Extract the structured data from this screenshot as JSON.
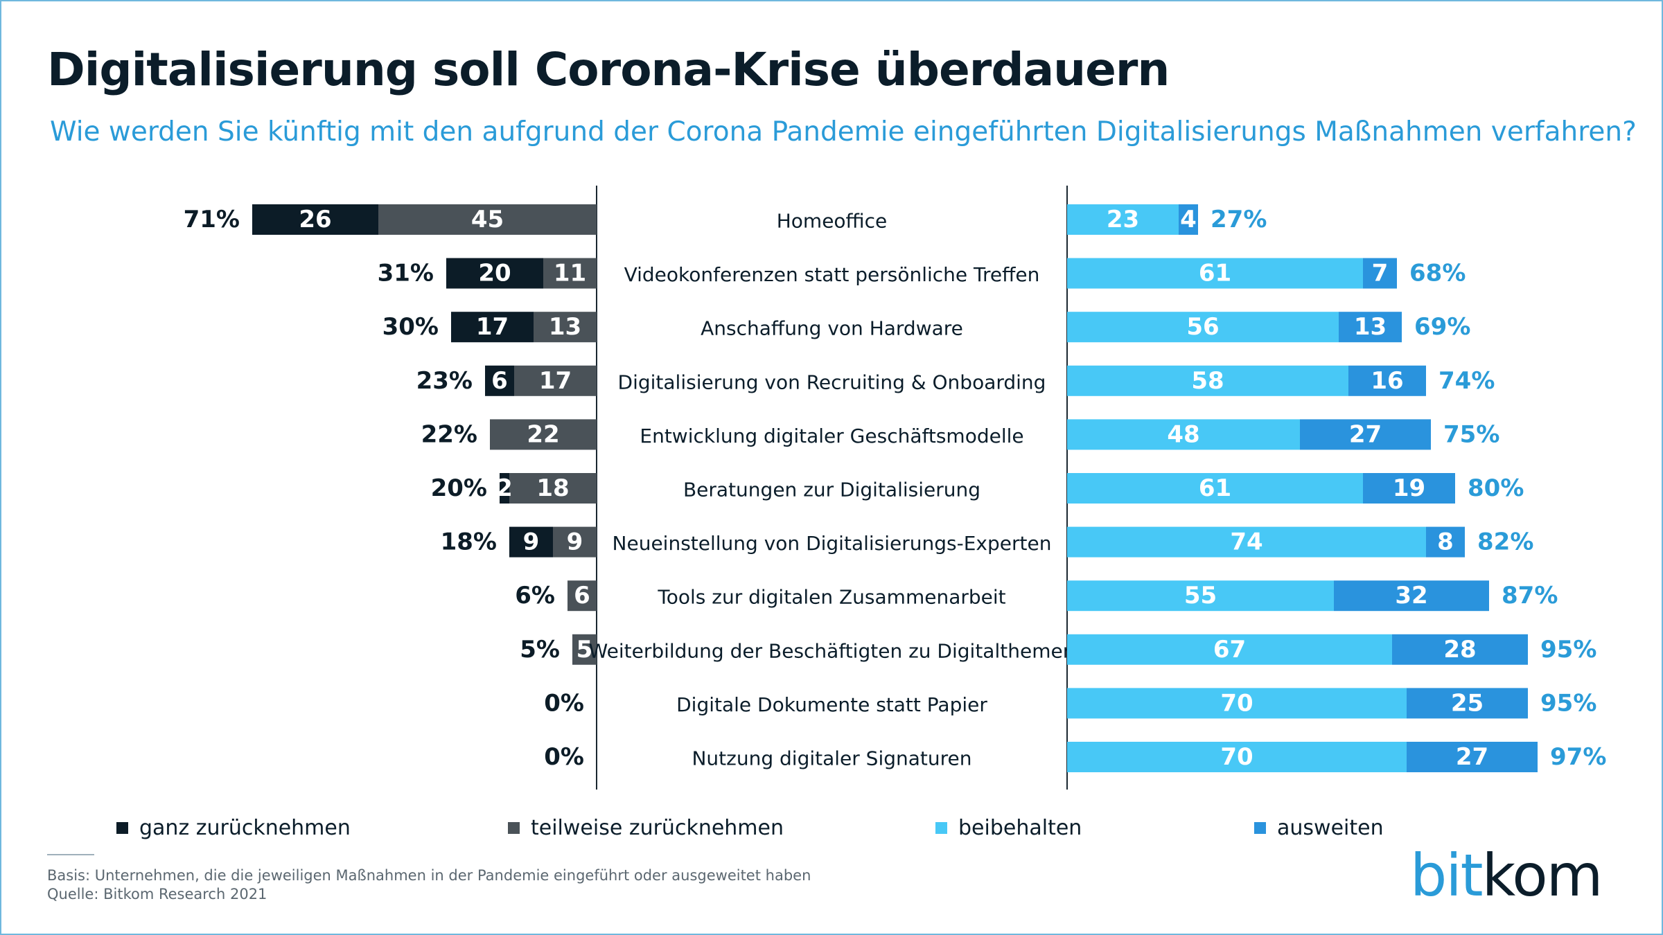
{
  "title": "Digitalisierung soll Corona-Krise überdauern",
  "subtitle": "Wie werden Sie künftig mit den aufgrund der Corona Pandemie eingeführten Digitalisierungs Maßnahmen verfahren?",
  "colors": {
    "ganz": "#0c1c27",
    "teilweise": "#4a5258",
    "beibehalten": "#48c8f6",
    "ausweiten": "#2a93dd",
    "accent_text": "#2a9bd8"
  },
  "chart_data": {
    "type": "bar",
    "layout": "diverging-stacked-horizontal",
    "categories": [
      "Homeoffice",
      "Videokonferenzen statt persönliche Treffen",
      "Anschaffung von Hardware",
      "Digitalisierung von Recruiting & Onboarding",
      "Entwicklung digitaler Geschäftsmodelle",
      "Beratungen zur Digitalisierung",
      "Neueinstellung von Digitalisierungs-Experten",
      "Tools zur digitalen Zusammenarbeit",
      "Weiterbildung der Beschäftigten zu Digitalthemen",
      "Digitale Dokumente statt Papier",
      "Nutzung digitaler Signaturen"
    ],
    "series": [
      {
        "name": "ganz zurücknehmen",
        "side": "left",
        "values": [
          26,
          20,
          17,
          6,
          0,
          2,
          9,
          0,
          0,
          0,
          0
        ]
      },
      {
        "name": "teilweise zurücknehmen",
        "side": "left",
        "values": [
          45,
          11,
          13,
          17,
          22,
          18,
          9,
          6,
          5,
          0,
          0
        ]
      },
      {
        "name": "beibehalten",
        "side": "right",
        "values": [
          23,
          61,
          56,
          58,
          48,
          61,
          74,
          55,
          67,
          70,
          70
        ]
      },
      {
        "name": "ausweiten",
        "side": "right",
        "values": [
          4,
          7,
          13,
          16,
          27,
          19,
          8,
          32,
          28,
          25,
          27
        ]
      }
    ],
    "left_totals": [
      "71%",
      "31%",
      "30%",
      "23%",
      "22%",
      "20%",
      "18%",
      "6%",
      "5%",
      "0%",
      "0%"
    ],
    "right_totals": [
      "27%",
      "68%",
      "69%",
      "74%",
      "75%",
      "80%",
      "82%",
      "87%",
      "95%",
      "95%",
      "97%"
    ],
    "unit": "%",
    "legend": [
      "ganz zurücknehmen",
      "teilweise zurücknehmen",
      "beibehalten",
      "ausweiten"
    ],
    "legend_position": "bottom",
    "grid": false
  },
  "footer": {
    "basis": "Basis: Unternehmen, die die jeweiligen Maßnahmen in der Pandemie eingeführt oder ausgeweitet haben",
    "source": "Quelle: Bitkom Research 2021"
  },
  "logo": {
    "part1": "bit",
    "part2": "kom"
  }
}
